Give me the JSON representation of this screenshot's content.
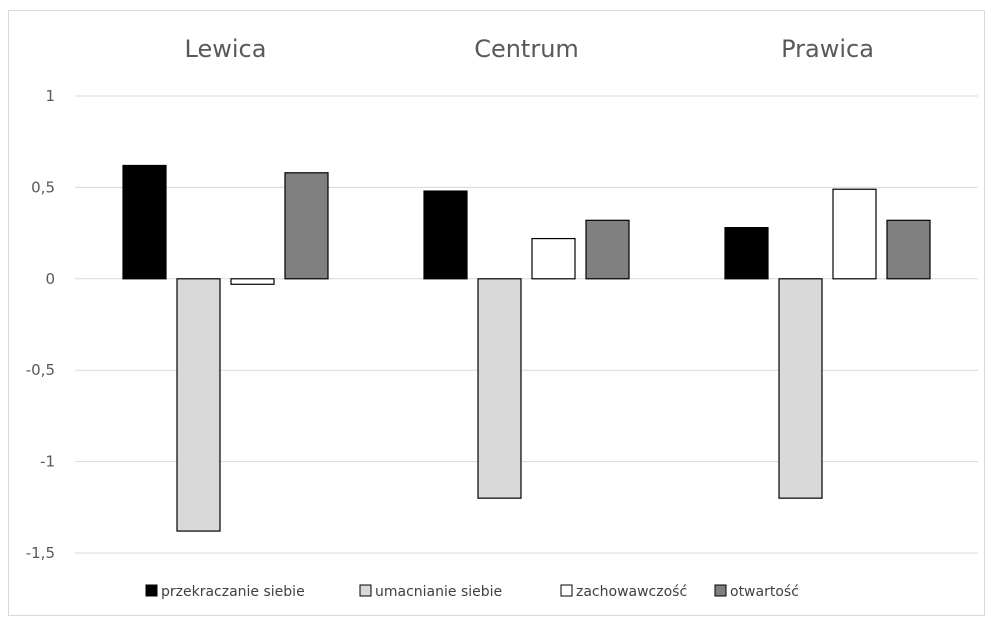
{
  "chart_data": {
    "type": "bar",
    "categories": [
      "Lewica",
      "Centrum",
      "Prawica"
    ],
    "series": [
      {
        "name": "przekraczanie siebie",
        "values": [
          0.62,
          0.48,
          0.28
        ],
        "color": "#000000"
      },
      {
        "name": "umacnianie siebie",
        "values": [
          -1.38,
          -1.2,
          -1.2
        ],
        "color": "#d9d9d9"
      },
      {
        "name": "zachowawczość",
        "values": [
          -0.03,
          0.22,
          0.49
        ],
        "color": "#ffffff"
      },
      {
        "name": "otwartość",
        "values": [
          0.58,
          0.32,
          0.32
        ],
        "color": "#808080"
      }
    ],
    "yticks": [
      "1",
      "0,5",
      "0",
      "-0,5",
      "-1",
      "-1,5"
    ],
    "ytick_values": [
      1,
      0.5,
      0,
      -0.5,
      -1,
      -1.5
    ],
    "ylim": [
      -1.5,
      1
    ],
    "grid": true,
    "legend_position": "bottom",
    "category_label_position": "top"
  }
}
